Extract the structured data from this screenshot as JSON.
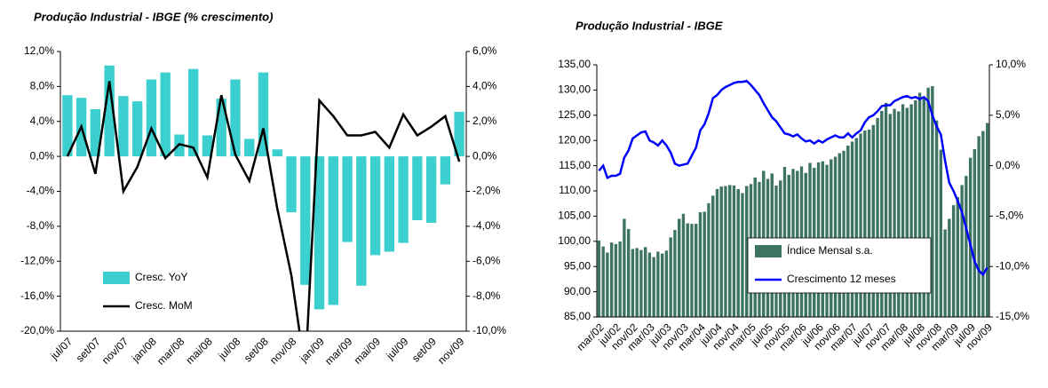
{
  "chart_data": [
    {
      "type": "bar",
      "title": "Produção Industrial - IBGE  (% crescimento)",
      "categories": [
        "jul/07",
        null,
        "set/07",
        null,
        "nov/07",
        null,
        "jan/08",
        null,
        "mar/08",
        null,
        "mai/08",
        null,
        "jul/08",
        null,
        "set/08",
        null,
        "nov/08",
        null,
        "jan/09",
        null,
        "mar/09",
        null,
        "mai/09",
        null,
        "jul/09",
        null,
        "set/09",
        null,
        "nov/09"
      ],
      "series": [
        {
          "name": "Cresc. YoY",
          "type": "bar",
          "color": "#3ccfcf",
          "values": [
            7.0,
            6.7,
            5.4,
            10.4,
            6.9,
            6.3,
            8.8,
            9.6,
            2.5,
            10.0,
            2.4,
            6.6,
            8.8,
            2.0,
            9.6,
            0.8,
            -6.4,
            -14.7,
            -17.5,
            -17.0,
            -9.8,
            -14.8,
            -11.3,
            -10.9,
            -9.9,
            -7.3,
            -7.6,
            -3.2,
            5.1
          ]
        },
        {
          "name": "Cresc. MoM",
          "type": "line",
          "axis": "y2",
          "color": "#000000",
          "values": [
            0.0,
            1.7,
            -1.0,
            4.3,
            -2.0,
            -0.6,
            1.6,
            -0.1,
            0.7,
            0.5,
            -1.2,
            3.5,
            0.1,
            -1.4,
            1.6,
            -3.0,
            -6.8,
            -12.3,
            3.2,
            2.3,
            1.2,
            1.2,
            1.4,
            0.5,
            2.4,
            1.2,
            1.7,
            2.3,
            -0.3
          ]
        }
      ],
      "ylim": [
        -20,
        12
      ],
      "yticks": [
        {
          "value": 12,
          "label": "12,0%"
        },
        {
          "value": 8,
          "label": "8,0%"
        },
        {
          "value": 4,
          "label": "4,0%"
        },
        {
          "value": 0,
          "label": "0,0%"
        },
        {
          "value": -4,
          "label": "-4,0%"
        },
        {
          "value": -8,
          "label": "-8,0%"
        },
        {
          "value": -12,
          "label": "-12,0%"
        },
        {
          "value": -16,
          "label": "-16,0%"
        },
        {
          "value": -20,
          "label": "-20,0%"
        }
      ],
      "y2lim": [
        -10,
        6
      ],
      "y2ticks": [
        {
          "value": 6,
          "label": "6,0%"
        },
        {
          "value": 4,
          "label": "4,0%"
        },
        {
          "value": 2,
          "label": "2,0%"
        },
        {
          "value": 0,
          "label": "0,0%"
        },
        {
          "value": -2,
          "label": "-2,0%"
        },
        {
          "value": -4,
          "label": "-4,0%"
        },
        {
          "value": -6,
          "label": "-6,0%"
        },
        {
          "value": -8,
          "label": "-8,0%"
        },
        {
          "value": -10,
          "label": "-10,0%"
        }
      ],
      "grid": false,
      "legend": "lower left"
    },
    {
      "type": "bar",
      "title": "Produção Industrial - IBGE",
      "categories": [
        "mar/02",
        null,
        null,
        null,
        "jul/02",
        null,
        null,
        null,
        "nov/02",
        null,
        null,
        null,
        "mar/03",
        null,
        null,
        null,
        "jul/03",
        null,
        null,
        null,
        "nov/03",
        null,
        null,
        null,
        "mar/04",
        null,
        null,
        null,
        "jul/04",
        null,
        null,
        null,
        "nov/04",
        null,
        null,
        null,
        "mar/05",
        null,
        null,
        null,
        "jul/05",
        null,
        null,
        null,
        "nov/05",
        null,
        null,
        null,
        "mar/06",
        null,
        null,
        null,
        "jul/06",
        null,
        null,
        null,
        "nov/06",
        null,
        null,
        null,
        "mar/07",
        null,
        null,
        null,
        "jul/07",
        null,
        null,
        null,
        "nov/07",
        null,
        null,
        null,
        "mar/08",
        null,
        null,
        null,
        "jul/08",
        null,
        null,
        null,
        "nov/08",
        null,
        null,
        null,
        "mar/09",
        null,
        null,
        null,
        "jul/09",
        null,
        null,
        null,
        "nov/09"
      ],
      "series": [
        {
          "name": "Índice Mensal s.a.",
          "type": "bar",
          "color": "#3d7363",
          "values": [
            100.2,
            99.0,
            97.8,
            99.8,
            99.5,
            100.0,
            104.5,
            102.5,
            98.5,
            98.7,
            98.3,
            98.9,
            97.8,
            96.9,
            98.0,
            97.6,
            98.2,
            100.8,
            102.3,
            104.5,
            105.5,
            103.6,
            103.5,
            103.5,
            105.8,
            105.9,
            107.6,
            109.1,
            110.4,
            110.9,
            111.0,
            111.2,
            111.1,
            110.4,
            109.6,
            111.0,
            111.4,
            112.7,
            111.8,
            114.0,
            112.4,
            113.5,
            111.1,
            112.1,
            114.8,
            113.2,
            114.4,
            114.0,
            114.9,
            113.6,
            115.6,
            114.6,
            115.7,
            115.9,
            115.2,
            116.3,
            116.8,
            117.5,
            118.0,
            119.0,
            119.8,
            120.5,
            121.4,
            122.0,
            122.2,
            123.1,
            124.5,
            125.9,
            127.5,
            125.3,
            126.3,
            125.8,
            127.2,
            126.5,
            127.2,
            128.0,
            129.5,
            128.7,
            130.5,
            130.8,
            124.0,
            118.2,
            102.4,
            104.5,
            107.2,
            108.8,
            111.2,
            113.0,
            116.6,
            118.3,
            120.9,
            121.9,
            123.5
          ]
        },
        {
          "name": "Crescimento 12 meses",
          "type": "line",
          "axis": "y2",
          "color": "#0000ff",
          "values": [
            -0.5,
            0.0,
            -1.2,
            -1.0,
            -1.0,
            -0.8,
            0.8,
            1.5,
            2.7,
            3.0,
            3.3,
            3.4,
            2.5,
            2.3,
            2.0,
            2.5,
            2.0,
            1.3,
            0.2,
            0.0,
            0.1,
            0.2,
            1.0,
            1.8,
            3.5,
            4.1,
            5.2,
            6.7,
            7.0,
            7.5,
            7.8,
            8.0,
            8.2,
            8.3,
            8.3,
            8.4,
            8.0,
            7.5,
            7.0,
            6.2,
            5.5,
            4.8,
            4.4,
            3.8,
            3.2,
            3.1,
            2.9,
            3.1,
            2.7,
            2.4,
            2.5,
            2.2,
            2.5,
            2.3,
            2.6,
            2.8,
            3.0,
            2.8,
            2.8,
            3.2,
            2.8,
            3.2,
            3.5,
            4.3,
            4.8,
            5.0,
            5.4,
            5.9,
            6.0,
            6.0,
            6.4,
            6.6,
            6.8,
            6.9,
            6.7,
            6.8,
            6.6,
            6.8,
            6.4,
            5.0,
            3.9,
            3.1,
            0.5,
            -1.7,
            -2.5,
            -3.5,
            -4.6,
            -6.2,
            -7.8,
            -9.5,
            -10.4,
            -10.8,
            -10.1
          ]
        }
      ],
      "ylim": [
        85,
        135
      ],
      "yticks": [
        {
          "value": 135,
          "label": "135,00"
        },
        {
          "value": 130,
          "label": "130,00"
        },
        {
          "value": 125,
          "label": "125,00"
        },
        {
          "value": 120,
          "label": "120,00"
        },
        {
          "value": 115,
          "label": "115,00"
        },
        {
          "value": 110,
          "label": "110,00"
        },
        {
          "value": 105,
          "label": "105,00"
        },
        {
          "value": 100,
          "label": "100,00"
        },
        {
          "value": 95,
          "label": "95,00"
        },
        {
          "value": 90,
          "label": "90,00"
        },
        {
          "value": 85,
          "label": "85,00"
        }
      ],
      "y2lim": [
        -15,
        10
      ],
      "y2ticks": [
        {
          "value": 10,
          "label": "10,0%"
        },
        {
          "value": 5,
          "label": "5,0%"
        },
        {
          "value": 0,
          "label": "0,0%"
        },
        {
          "value": -5,
          "label": "-5,0%"
        },
        {
          "value": -10,
          "label": "-10,0%"
        },
        {
          "value": -15,
          "label": "-15,0%"
        }
      ],
      "grid": false,
      "legend": "lower right"
    }
  ]
}
